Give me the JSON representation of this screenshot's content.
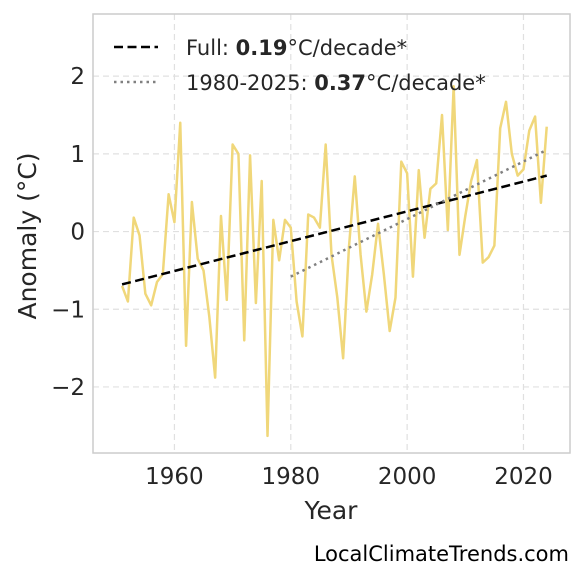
{
  "chart_data": {
    "type": "line",
    "xlabel": "Year",
    "ylabel": "Anomaly (°C)",
    "xlim": [
      1946,
      2028
    ],
    "ylim": [
      -2.85,
      2.8
    ],
    "xticks": [
      {
        "value": 1960,
        "label": "1960"
      },
      {
        "value": 1980,
        "label": "1980"
      },
      {
        "value": 2000,
        "label": "2000"
      },
      {
        "value": 2020,
        "label": "2020"
      }
    ],
    "yticks": [
      {
        "value": 2,
        "label": "2"
      },
      {
        "value": 1,
        "label": "1"
      },
      {
        "value": 0,
        "label": "0"
      },
      {
        "value": -1,
        "label": "−1"
      },
      {
        "value": -2,
        "label": "−2"
      }
    ],
    "grid": true,
    "legend_position": "top-left",
    "series": [
      {
        "id": "anomaly",
        "color": "#f0d77a",
        "x": [
          1951,
          1952,
          1953,
          1954,
          1955,
          1956,
          1957,
          1958,
          1959,
          1960,
          1961,
          1962,
          1963,
          1964,
          1965,
          1966,
          1967,
          1968,
          1969,
          1970,
          1971,
          1972,
          1973,
          1974,
          1975,
          1976,
          1977,
          1978,
          1979,
          1980,
          1981,
          1982,
          1983,
          1984,
          1985,
          1986,
          1987,
          1988,
          1989,
          1990,
          1991,
          1992,
          1993,
          1994,
          1995,
          1996,
          1997,
          1998,
          1999,
          2000,
          2001,
          2002,
          2003,
          2004,
          2005,
          2006,
          2007,
          2008,
          2009,
          2010,
          2011,
          2012,
          2013,
          2014,
          2015,
          2016,
          2017,
          2018,
          2019,
          2020,
          2021,
          2022,
          2023,
          2024
        ],
        "y": [
          -0.7,
          -0.9,
          0.18,
          -0.05,
          -0.8,
          -0.95,
          -0.65,
          -0.55,
          0.48,
          0.12,
          1.4,
          -1.47,
          0.38,
          -0.35,
          -0.5,
          -1.1,
          -1.88,
          0.2,
          -0.88,
          1.12,
          1.0,
          -1.4,
          0.98,
          -0.92,
          0.65,
          -2.63,
          0.15,
          -0.37,
          0.15,
          0.05,
          -0.9,
          -1.35,
          0.22,
          0.18,
          0.05,
          1.12,
          -0.3,
          -0.85,
          -1.63,
          -0.2,
          0.71,
          -0.3,
          -1.03,
          -0.55,
          0.1,
          -0.55,
          -1.28,
          -0.85,
          0.9,
          0.75,
          -0.58,
          0.79,
          -0.08,
          0.55,
          0.62,
          1.5,
          0.02,
          1.87,
          -0.3,
          0.2,
          0.65,
          0.92,
          -0.4,
          -0.33,
          -0.18,
          1.33,
          1.67,
          1.0,
          0.72,
          0.8,
          1.3,
          1.48,
          0.37,
          1.35
        ]
      },
      {
        "id": "trend-full",
        "color": "#000000",
        "x": [
          1951,
          2024
        ],
        "y": [
          -0.68,
          0.72
        ]
      },
      {
        "id": "trend-1980",
        "color": "#808080",
        "x": [
          1980,
          2024
        ],
        "y": [
          -0.58,
          1.05
        ]
      }
    ],
    "legend": [
      {
        "series": "trend-full",
        "prefix": "Full: ",
        "value": "0.19",
        "suffix": "°C/decade*"
      },
      {
        "series": "trend-1980",
        "prefix": "1980-2025: ",
        "value": "0.37",
        "suffix": "°C/decade*"
      }
    ]
  },
  "credit": "LocalClimateTrends.com"
}
